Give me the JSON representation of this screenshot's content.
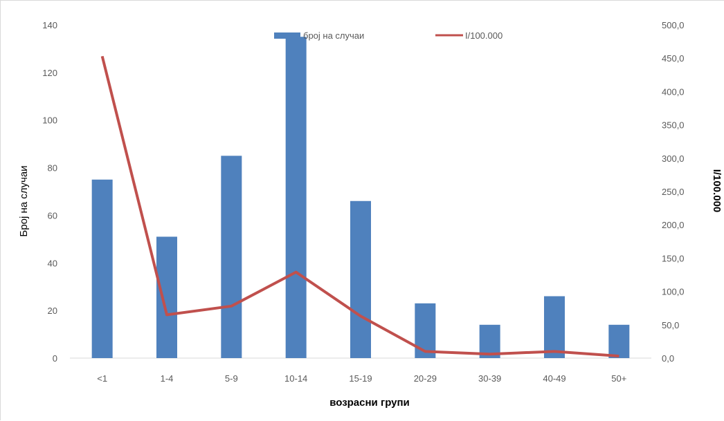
{
  "chart_data": {
    "type": "bar",
    "categories": [
      "<1",
      "1-4",
      "5-9",
      "10-14",
      "15-19",
      "20-29",
      "30-39",
      "40-49",
      "50+"
    ],
    "series": [
      {
        "name": "број на случаи",
        "type": "bar",
        "axis": "left",
        "color": "#4f81bd",
        "values": [
          75,
          51,
          85,
          135,
          66,
          23,
          14,
          26,
          14
        ]
      },
      {
        "name": "I/100.000",
        "type": "line",
        "axis": "right",
        "color": "#c0504d",
        "values": [
          453,
          65,
          78,
          129,
          63,
          10,
          6,
          10,
          3
        ]
      }
    ],
    "xlabel": "возрасни групи",
    "ylabel": "Број на случаи",
    "y2label": "I/100.000",
    "ylim": [
      0,
      140
    ],
    "y2lim": [
      0,
      500
    ],
    "yticks": [
      "0",
      "20",
      "40",
      "60",
      "80",
      "100",
      "120",
      "140"
    ],
    "y2ticks": [
      "0,0",
      "50,0",
      "100,0",
      "150,0",
      "200,0",
      "250,0",
      "300,0",
      "350,0",
      "400,0",
      "450,0",
      "500,0"
    ],
    "grid": false,
    "legend": "top-center"
  }
}
